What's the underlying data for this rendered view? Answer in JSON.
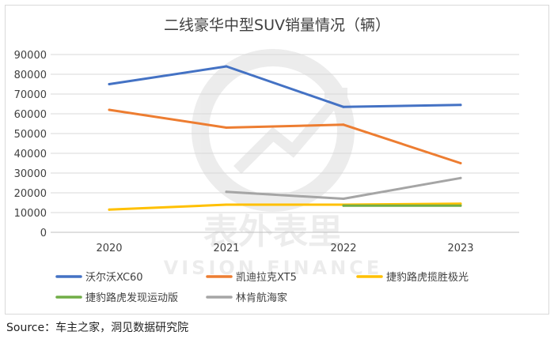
{
  "source_text": "Source：车主之家，洞见数据研究院",
  "watermark": {
    "brand": "表外表里",
    "sub": "VISION FINANCE"
  },
  "chart_data": {
    "type": "line",
    "title": "二线豪华中型SUV销量情况（辆）",
    "categories": [
      "2020",
      "2021",
      "2022",
      "2023"
    ],
    "ylim": [
      0,
      90000
    ],
    "ytick_step": 10000,
    "y_ticks": [
      "0",
      "10000",
      "20000",
      "30000",
      "40000",
      "50000",
      "60000",
      "70000",
      "80000",
      "90000"
    ],
    "grid": true,
    "legend_position": "bottom",
    "series": [
      {
        "name": "沃尔沃XC60",
        "color": "#4472c4",
        "values": [
          75000,
          84000,
          63500,
          64500
        ]
      },
      {
        "name": "凯迪拉克XT5",
        "color": "#ed7d31",
        "values": [
          62000,
          53000,
          54500,
          35000
        ]
      },
      {
        "name": "捷豹路虎揽胜极光",
        "color": "#ffc000",
        "values": [
          11500,
          14000,
          14000,
          14500
        ]
      },
      {
        "name": "捷豹路虎发现运动版",
        "color": "#70ad47",
        "values": [
          null,
          null,
          13500,
          13500
        ]
      },
      {
        "name": "林肯航海家",
        "color": "#a5a5a5",
        "values": [
          null,
          20500,
          17000,
          27500
        ]
      }
    ]
  }
}
